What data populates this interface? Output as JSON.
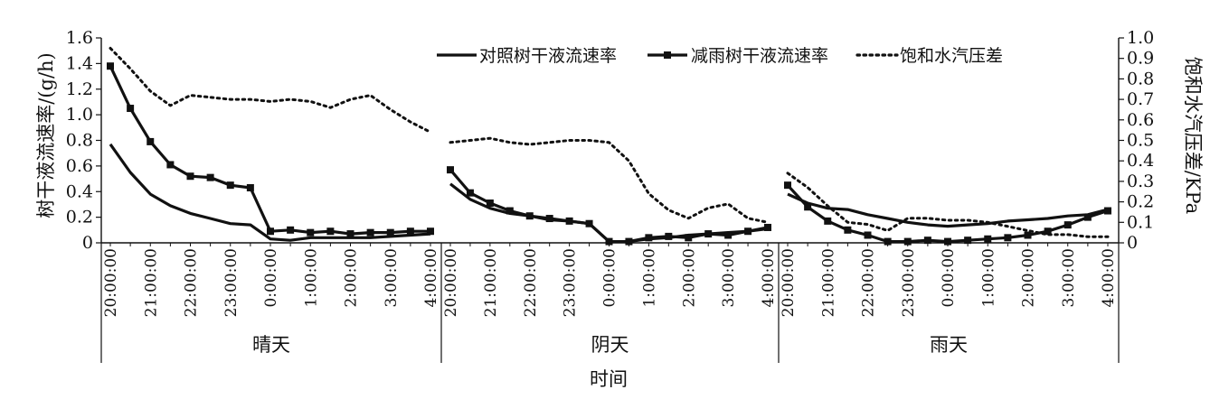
{
  "chart_data": {
    "type": "line",
    "title": "",
    "xlabel": "时间",
    "ylabel": "树干液流速率/(g/h)",
    "y2label": "饱和水汽压差/KPa",
    "ylim": [
      0,
      1.6
    ],
    "y2lim": [
      0,
      1.0
    ],
    "yticks": [
      "0",
      "0.2",
      "0.4",
      "0.6",
      "0.8",
      "1.0",
      "1.2",
      "1.4",
      "1.6"
    ],
    "y2ticks": [
      "0",
      "0.1",
      "0.2",
      "0.3",
      "0.4",
      "0.5",
      "0.6",
      "0.7",
      "0.8",
      "0.9",
      "1.0"
    ],
    "groups": [
      "晴天",
      "阴天",
      "雨天"
    ],
    "tick_labels": [
      "20:00:00",
      "21:00:00",
      "22:00:00",
      "23:00:00",
      "0:00:00",
      "1:00:00",
      "2:00:00",
      "3:00:00",
      "4:00:00"
    ],
    "points_per_group": 17,
    "legend_position": "top-right",
    "grid": false,
    "series": [
      {
        "name": "对照树干液流速率",
        "axis": "left",
        "style": "solid",
        "marker": "none",
        "groups": [
          [
            0.77,
            0.55,
            0.38,
            0.29,
            0.23,
            0.19,
            0.15,
            0.14,
            0.03,
            0.02,
            0.04,
            0.04,
            0.04,
            0.04,
            0.05,
            0.06,
            0.07
          ],
          [
            0.46,
            0.34,
            0.27,
            0.23,
            0.21,
            0.18,
            0.17,
            0.15,
            0.01,
            0.01,
            0.03,
            0.04,
            0.06,
            0.07,
            0.08,
            0.09,
            0.11
          ],
          [
            0.38,
            0.31,
            0.27,
            0.26,
            0.22,
            0.19,
            0.16,
            0.14,
            0.13,
            0.14,
            0.15,
            0.17,
            0.18,
            0.19,
            0.21,
            0.22,
            0.26
          ]
        ]
      },
      {
        "name": "减雨树干液流速率",
        "axis": "left",
        "style": "solid",
        "marker": "square",
        "groups": [
          [
            1.38,
            1.05,
            0.79,
            0.61,
            0.52,
            0.51,
            0.45,
            0.43,
            0.09,
            0.1,
            0.08,
            0.09,
            0.07,
            0.08,
            0.08,
            0.09,
            0.09
          ],
          [
            0.57,
            0.39,
            0.31,
            0.25,
            0.21,
            0.19,
            0.17,
            0.15,
            0.01,
            0.01,
            0.04,
            0.05,
            0.04,
            0.07,
            0.06,
            0.09,
            0.12
          ],
          [
            0.45,
            0.28,
            0.17,
            0.1,
            0.06,
            0.01,
            0.01,
            0.02,
            0.01,
            0.02,
            0.03,
            0.04,
            0.06,
            0.09,
            0.14,
            0.2,
            0.25
          ]
        ]
      },
      {
        "name": "饱和水汽压差",
        "axis": "right",
        "style": "dotted",
        "marker": "none",
        "groups": [
          [
            0.95,
            0.85,
            0.74,
            0.67,
            0.72,
            0.71,
            0.7,
            0.7,
            0.69,
            0.7,
            0.69,
            0.66,
            0.7,
            0.72,
            0.65,
            0.59,
            0.54
          ],
          [
            0.49,
            0.5,
            0.51,
            0.49,
            0.48,
            0.49,
            0.5,
            0.5,
            0.49,
            0.4,
            0.24,
            0.16,
            0.12,
            0.17,
            0.19,
            0.12,
            0.1
          ],
          [
            0.34,
            0.27,
            0.18,
            0.1,
            0.09,
            0.06,
            0.12,
            0.12,
            0.11,
            0.11,
            0.1,
            0.08,
            0.06,
            0.04,
            0.04,
            0.03,
            0.03
          ]
        ]
      }
    ]
  }
}
